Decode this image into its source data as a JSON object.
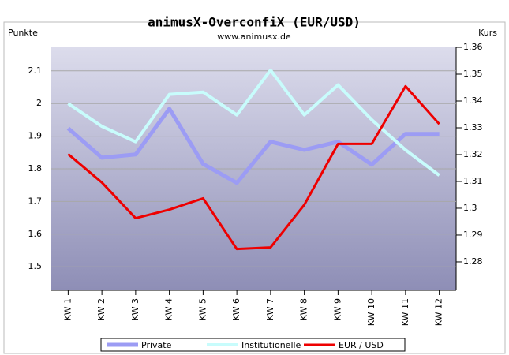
{
  "chart_data": {
    "type": "line",
    "title": "animusX-OverconfiX (EUR/USD)",
    "subtitle": "www.animusx.de",
    "y_label": "Punkte",
    "y2_label": "Kurs",
    "categories": [
      "KW 1",
      "KW 2",
      "KW 3",
      "KW 4",
      "KW 5",
      "KW 6",
      "KW 7",
      "KW 8",
      "KW 9",
      "KW 10",
      "KW 11",
      "KW 12"
    ],
    "series": [
      {
        "name": "Private",
        "color": "#9c9cf4",
        "values": [
          1.924,
          1.834,
          1.844,
          1.984,
          1.815,
          1.757,
          1.883,
          1.858,
          1.883,
          1.813,
          1.907,
          1.907
        ]
      },
      {
        "name": "Institutionelle",
        "color": "#c8fcfc",
        "values": [
          2.0,
          1.93,
          1.883,
          2.028,
          2.035,
          1.965,
          2.102,
          1.965,
          2.057,
          1.95,
          1.858,
          1.78
        ]
      },
      {
        "name": "EUR / USD",
        "color": "#ee0000",
        "axis": "y2",
        "values": [
          1.3202,
          1.3096,
          1.2963,
          1.2995,
          1.3037,
          1.2848,
          1.2854,
          1.3013,
          1.324,
          1.324,
          1.3455,
          1.3314
        ]
      }
    ],
    "ylim": [
      1.428,
      2.172
    ],
    "yticks": [
      1.5,
      1.6,
      1.7,
      1.8,
      1.9,
      2,
      2.1
    ],
    "y2lim": [
      1.2694,
      1.36
    ],
    "y2ticks": [
      1.28,
      1.29,
      1.3,
      1.31,
      1.32,
      1.33,
      1.34,
      1.35,
      1.36
    ],
    "grid": true,
    "legend": "bottom"
  }
}
